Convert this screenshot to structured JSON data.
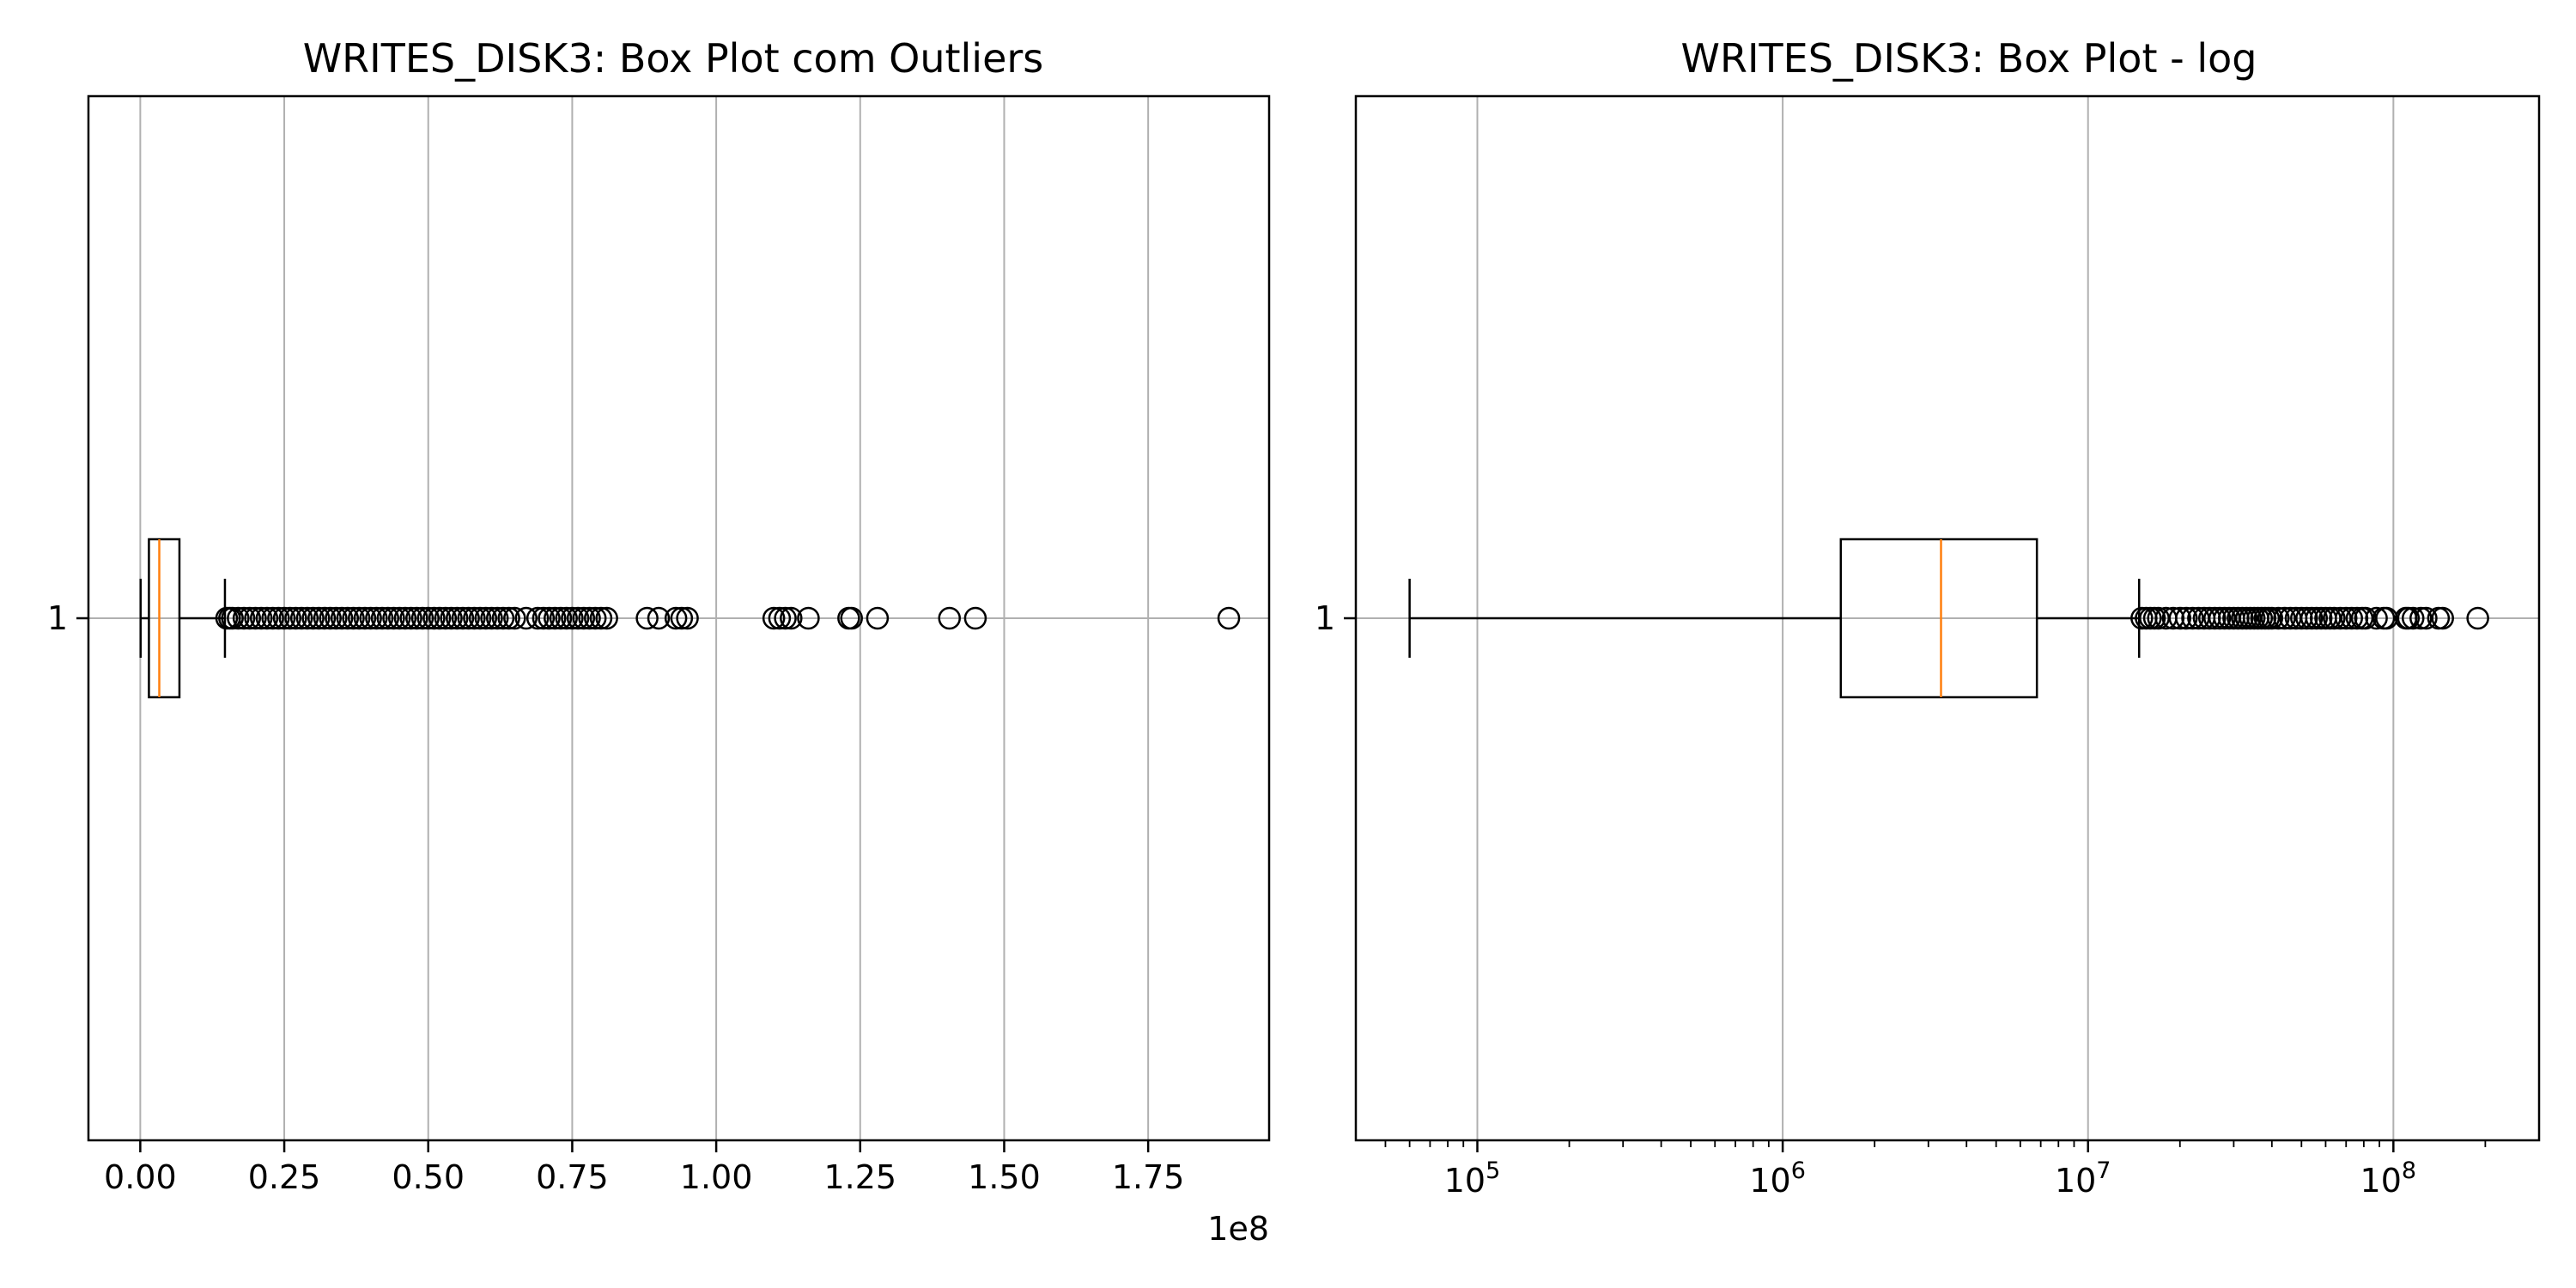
{
  "chart_data": [
    {
      "type": "boxplot",
      "orientation": "horizontal",
      "title": "WRITES_DISK3: Box Plot com Outliers",
      "xscale": "linear",
      "xlim": [
        -9000000,
        196000000
      ],
      "x_ticks": [
        0,
        25000000,
        50000000,
        75000000,
        100000000,
        125000000,
        150000000,
        175000000
      ],
      "x_tick_labels": [
        "0.00",
        "0.25",
        "0.50",
        "0.75",
        "1.00",
        "1.25",
        "1.50",
        "1.75"
      ],
      "x_offset_label": "1e8",
      "y_ticks": [
        1
      ],
      "y_tick_labels": [
        "1"
      ],
      "grid": true,
      "box": {
        "whisker_low": 60000,
        "q1": 1500000,
        "median": 3300000,
        "q3": 6800000,
        "whisker_high": 14700000,
        "outliers": [
          15000000,
          15500000,
          16000000,
          17000000,
          18000000,
          19000000,
          20000000,
          21000000,
          22000000,
          23000000,
          24000000,
          25000000,
          26000000,
          27000000,
          28000000,
          29000000,
          30000000,
          31000000,
          32000000,
          33000000,
          34000000,
          35000000,
          36000000,
          37000000,
          38000000,
          39000000,
          40000000,
          41000000,
          42000000,
          43000000,
          44000000,
          45000000,
          46000000,
          47000000,
          48000000,
          49000000,
          50000000,
          51000000,
          52000000,
          53000000,
          54000000,
          55000000,
          56000000,
          57000000,
          58000000,
          59000000,
          60000000,
          61000000,
          62000000,
          63000000,
          64000000,
          65000000,
          67000000,
          69000000,
          70000000,
          71000000,
          72000000,
          73000000,
          74000000,
          75000000,
          76000000,
          77000000,
          78000000,
          79000000,
          80000000,
          81000000,
          88000000,
          90000000,
          93000000,
          94000000,
          95000000,
          110000000,
          111000000,
          112000000,
          113000000,
          116000000,
          123000000,
          123500000,
          128000000,
          140500000,
          145000000,
          189000000
        ]
      },
      "colors": {
        "median": "#ff7f0e",
        "box": "#000000",
        "grid": "#b0b0b0"
      }
    },
    {
      "type": "boxplot",
      "orientation": "horizontal",
      "title": "WRITES_DISK3: Box Plot - log",
      "xscale": "log",
      "xlim": [
        40000,
        300000000
      ],
      "x_ticks": [
        100000,
        1000000,
        10000000,
        100000000
      ],
      "x_tick_bases": [
        "10",
        "10",
        "10",
        "10"
      ],
      "x_tick_exponents": [
        "5",
        "6",
        "7",
        "8"
      ],
      "y_ticks": [
        1
      ],
      "y_tick_labels": [
        "1"
      ],
      "grid": true,
      "box": {
        "whisker_low": 60000,
        "q1": 1550000,
        "median": 3300000,
        "q3": 6800000,
        "whisker_high": 14700000,
        "outliers": [
          15000000,
          15500000,
          16000000,
          16500000,
          17000000,
          18000000,
          19000000,
          20000000,
          21000000,
          22000000,
          23000000,
          24000000,
          25000000,
          26000000,
          27000000,
          28000000,
          29000000,
          30000000,
          31000000,
          32000000,
          33000000,
          34000000,
          35000000,
          36000000,
          37000000,
          38000000,
          39000000,
          40000000,
          42000000,
          44000000,
          46000000,
          48000000,
          50000000,
          52000000,
          54000000,
          56000000,
          58000000,
          60000000,
          62000000,
          64000000,
          67000000,
          70000000,
          73000000,
          76000000,
          79000000,
          81000000,
          88000000,
          93000000,
          95000000,
          110000000,
          112000000,
          116000000,
          123000000,
          128000000,
          140500000,
          145000000,
          189000000
        ]
      },
      "colors": {
        "median": "#ff7f0e",
        "box": "#000000",
        "grid": "#b0b0b0"
      }
    }
  ]
}
